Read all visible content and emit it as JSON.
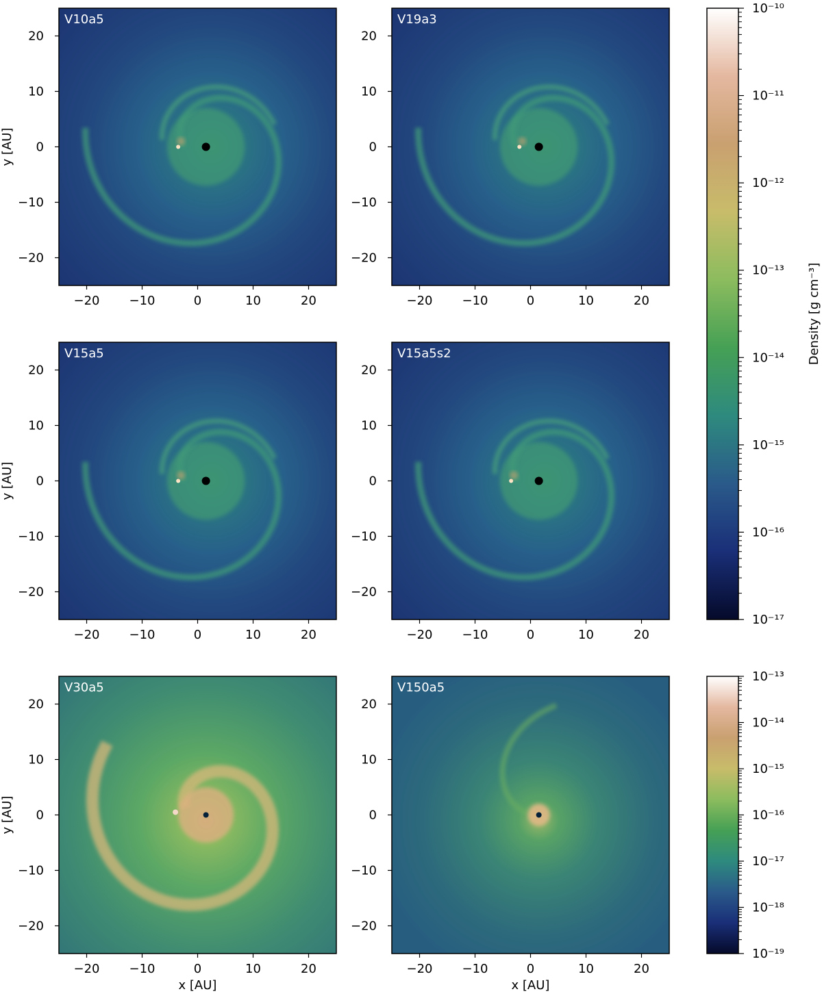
{
  "chart_data": {
    "type": "heatmap",
    "description_of_panels": "six density maps of a binary star system",
    "panels": [
      {
        "title": "V10a5",
        "palette": "upper",
        "xlabel": "",
        "ylabel": "y [AU]"
      },
      {
        "title": "V19a3",
        "palette": "upper",
        "xlabel": "",
        "ylabel": ""
      },
      {
        "title": "V15a5",
        "palette": "upper",
        "xlabel": "",
        "ylabel": "y [AU]"
      },
      {
        "title": "V15a5s2",
        "palette": "upper",
        "xlabel": "",
        "ylabel": ""
      },
      {
        "title": "V30a5",
        "palette": "lower",
        "xlabel": "x [AU]",
        "ylabel": "y [AU]"
      },
      {
        "title": "V150a5",
        "palette": "lower",
        "xlabel": "x [AU]",
        "ylabel": ""
      }
    ],
    "xlim": [
      -25,
      25
    ],
    "ylim": [
      -25,
      25
    ],
    "xticks": [
      -20,
      -10,
      0,
      10,
      20
    ],
    "yticks": [
      20,
      10,
      0,
      -10,
      -20
    ],
    "xtick_labels": [
      "−20",
      "−10",
      "0",
      "10",
      "20"
    ],
    "ytick_labels": [
      "20",
      "10",
      "0",
      "−10",
      "−20"
    ],
    "colorbars": [
      {
        "name": "upper",
        "label": "Density [g cm⁻³]",
        "scale": "log",
        "range_exponents": [
          -17,
          -10
        ],
        "tick_labels": [
          "10⁻¹⁰",
          "10⁻¹¹",
          "10⁻¹²",
          "10⁻¹³",
          "10⁻¹⁴",
          "10⁻¹⁵",
          "10⁻¹⁶",
          "10⁻¹⁷"
        ]
      },
      {
        "name": "lower",
        "label": "",
        "scale": "log",
        "range_exponents": [
          -19,
          -13
        ],
        "tick_labels": [
          "10⁻¹³",
          "10⁻¹⁴",
          "10⁻¹⁵",
          "10⁻¹⁶",
          "10⁻¹⁷",
          "10⁻¹⁸",
          "10⁻¹⁹"
        ]
      }
    ],
    "colormap_stops": [
      "#050a2a",
      "#1a2f78",
      "#2a5a8a",
      "#2e8a7e",
      "#45a055",
      "#8cbc5e",
      "#c8bc6a",
      "#c9a070",
      "#e4b8a0",
      "#ffffff"
    ]
  }
}
